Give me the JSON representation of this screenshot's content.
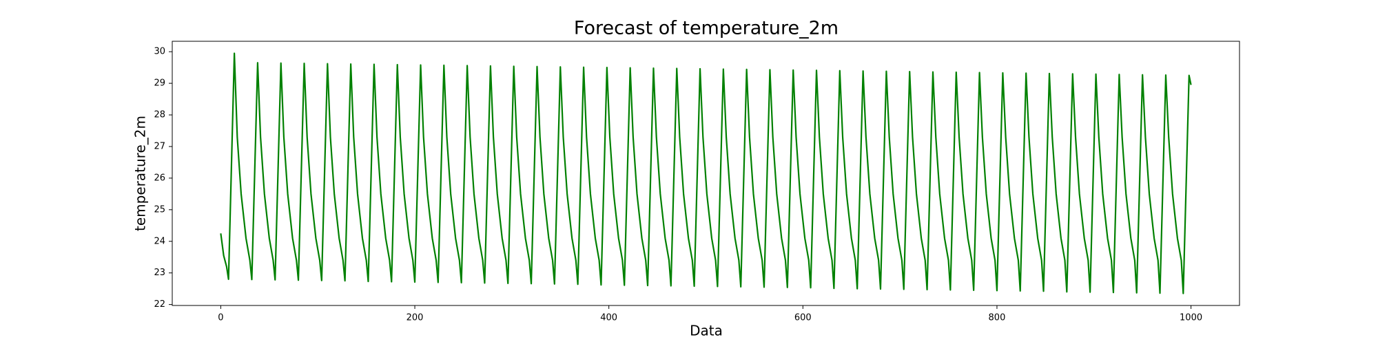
{
  "chart_data": {
    "type": "line",
    "title": "Forecast of temperature_2m",
    "xlabel": "Data",
    "ylabel": "temperature_2m",
    "color": "#008000",
    "xlim": [
      -50,
      1050
    ],
    "ylim": [
      21.97,
      30.33
    ],
    "xticks": [
      0,
      200,
      400,
      600,
      800,
      1000
    ],
    "yticks": [
      22,
      23,
      24,
      25,
      26,
      27,
      28,
      29,
      30
    ],
    "x": [
      0,
      3,
      6,
      8,
      14,
      17,
      21,
      26,
      30,
      32,
      38,
      41,
      45,
      50,
      54,
      56,
      62,
      65,
      69,
      74,
      78,
      80,
      86,
      89,
      93,
      98,
      102,
      104,
      110,
      113,
      117,
      122,
      126,
      128,
      134,
      137,
      141,
      146,
      150,
      152,
      158,
      161,
      165,
      170,
      174,
      176,
      182,
      185,
      189,
      194,
      198,
      200,
      206,
      209,
      213,
      218,
      222,
      224,
      230,
      233,
      237,
      242,
      246,
      248,
      254,
      257,
      261,
      266,
      270,
      272,
      278,
      281,
      285,
      290,
      294,
      296,
      302,
      305,
      309,
      314,
      318,
      320,
      326,
      329,
      333,
      338,
      342,
      344,
      350,
      353,
      357,
      362,
      366,
      368,
      374,
      377,
      381,
      386,
      390,
      392,
      398,
      401,
      405,
      410,
      414,
      416,
      422,
      425,
      429,
      434,
      438,
      440,
      446,
      449,
      453,
      458,
      462,
      464,
      470,
      473,
      477,
      482,
      486,
      488,
      494,
      497,
      501,
      506,
      510,
      512,
      518,
      521,
      525,
      530,
      534,
      536,
      542,
      545,
      549,
      554,
      558,
      560,
      566,
      569,
      573,
      578,
      582,
      584,
      590,
      593,
      597,
      602,
      606,
      608,
      614,
      617,
      621,
      626,
      630,
      632,
      638,
      641,
      645,
      650,
      654,
      656,
      662,
      665,
      669,
      674,
      678,
      680,
      686,
      689,
      693,
      698,
      702,
      704,
      710,
      713,
      717,
      722,
      726,
      728,
      734,
      737,
      741,
      746,
      750,
      752,
      758,
      761,
      765,
      770,
      774,
      776,
      782,
      785,
      789,
      794,
      798,
      800,
      806,
      809,
      813,
      818,
      822,
      824,
      830,
      833,
      837,
      842,
      846,
      848,
      854,
      857,
      861,
      866,
      870,
      872,
      878,
      881,
      885,
      890,
      894,
      896,
      902,
      905,
      909,
      914,
      918,
      920,
      926,
      929,
      933,
      938,
      942,
      944,
      950,
      953,
      957,
      962,
      966,
      968,
      974,
      977,
      981,
      986,
      990,
      992,
      998,
      1000
    ],
    "values": [
      24.25,
      23.55,
      23.2,
      22.8,
      29.95,
      27.3,
      25.5,
      24.1,
      23.4,
      22.79,
      29.65,
      27.3,
      25.5,
      24.1,
      23.4,
      22.78,
      29.64,
      27.3,
      25.5,
      24.1,
      23.4,
      22.77,
      29.63,
      27.3,
      25.5,
      24.1,
      23.4,
      22.76,
      29.62,
      27.3,
      25.5,
      24.1,
      23.4,
      22.75,
      29.61,
      27.3,
      25.5,
      24.1,
      23.4,
      22.73,
      29.6,
      27.3,
      25.5,
      24.1,
      23.4,
      22.72,
      29.59,
      27.3,
      25.5,
      24.1,
      23.4,
      22.71,
      29.58,
      27.3,
      25.5,
      24.1,
      23.4,
      22.7,
      29.57,
      27.3,
      25.5,
      24.1,
      23.4,
      22.69,
      29.56,
      27.3,
      25.5,
      24.1,
      23.4,
      22.68,
      29.55,
      27.3,
      25.5,
      24.1,
      23.4,
      22.67,
      29.54,
      27.3,
      25.5,
      24.1,
      23.4,
      22.66,
      29.53,
      27.3,
      25.5,
      24.1,
      23.4,
      22.65,
      29.52,
      27.3,
      25.5,
      24.1,
      23.4,
      22.64,
      29.51,
      27.3,
      25.5,
      24.1,
      23.4,
      22.62,
      29.5,
      27.3,
      25.5,
      24.1,
      23.4,
      22.61,
      29.49,
      27.3,
      25.5,
      24.1,
      23.4,
      22.6,
      29.48,
      27.3,
      25.5,
      24.1,
      23.4,
      22.59,
      29.47,
      27.3,
      25.5,
      24.1,
      23.4,
      22.58,
      29.46,
      27.3,
      25.5,
      24.1,
      23.4,
      22.57,
      29.45,
      27.3,
      25.5,
      24.1,
      23.4,
      22.56,
      29.44,
      27.3,
      25.5,
      24.1,
      23.4,
      22.55,
      29.43,
      27.3,
      25.5,
      24.1,
      23.4,
      22.54,
      29.42,
      27.3,
      25.5,
      24.1,
      23.4,
      22.53,
      29.41,
      27.3,
      25.5,
      24.1,
      23.4,
      22.51,
      29.4,
      27.3,
      25.5,
      24.1,
      23.4,
      22.5,
      29.39,
      27.3,
      25.5,
      24.1,
      23.4,
      22.49,
      29.38,
      27.3,
      25.5,
      24.1,
      23.4,
      22.48,
      29.37,
      27.3,
      25.5,
      24.1,
      23.4,
      22.47,
      29.36,
      27.3,
      25.5,
      24.1,
      23.4,
      22.46,
      29.35,
      27.3,
      25.5,
      24.1,
      23.4,
      22.45,
      29.34,
      27.3,
      25.5,
      24.1,
      23.4,
      22.44,
      29.33,
      27.3,
      25.5,
      24.1,
      23.4,
      22.43,
      29.32,
      27.3,
      25.5,
      24.1,
      23.4,
      22.42,
      29.31,
      27.3,
      25.5,
      24.1,
      23.4,
      22.4,
      29.3,
      27.3,
      25.5,
      24.1,
      23.4,
      22.39,
      29.29,
      27.3,
      25.5,
      24.1,
      23.4,
      22.38,
      29.28,
      27.3,
      25.5,
      24.1,
      23.4,
      22.37,
      29.27,
      27.3,
      25.5,
      24.1,
      23.4,
      22.36,
      29.26,
      27.3,
      25.5,
      24.1,
      23.4,
      22.35,
      29.25,
      28.95
    ]
  }
}
